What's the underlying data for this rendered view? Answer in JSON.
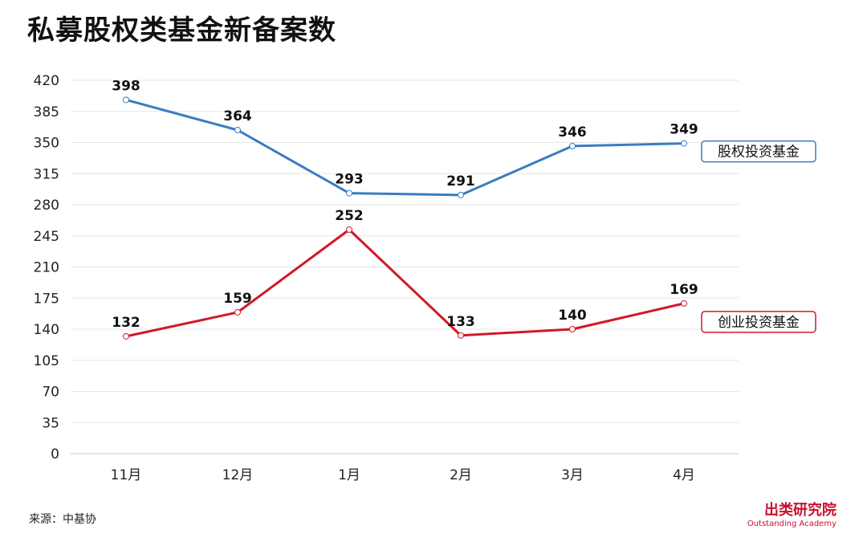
{
  "title": "私募股权类基金新备案数",
  "source": "来源：中基协",
  "brand": {
    "name": "出类研究院",
    "subtitle": "Outstanding Academy"
  },
  "chart_data": {
    "type": "line",
    "title": "私募股权类基金新备案数",
    "categories": [
      "11月",
      "12月",
      "1月",
      "2月",
      "3月",
      "4月"
    ],
    "ylim": [
      0,
      420
    ],
    "yticks": [
      0,
      35,
      70,
      105,
      140,
      175,
      210,
      245,
      280,
      315,
      350,
      385,
      420
    ],
    "grid": true,
    "series": [
      {
        "name": "股权投资基金",
        "color": "#3a7cc3",
        "values": [
          398,
          364,
          293,
          291,
          346,
          349
        ]
      },
      {
        "name": "创业投资基金",
        "color": "#d2182a",
        "values": [
          132,
          159,
          252,
          133,
          140,
          169
        ]
      }
    ]
  }
}
